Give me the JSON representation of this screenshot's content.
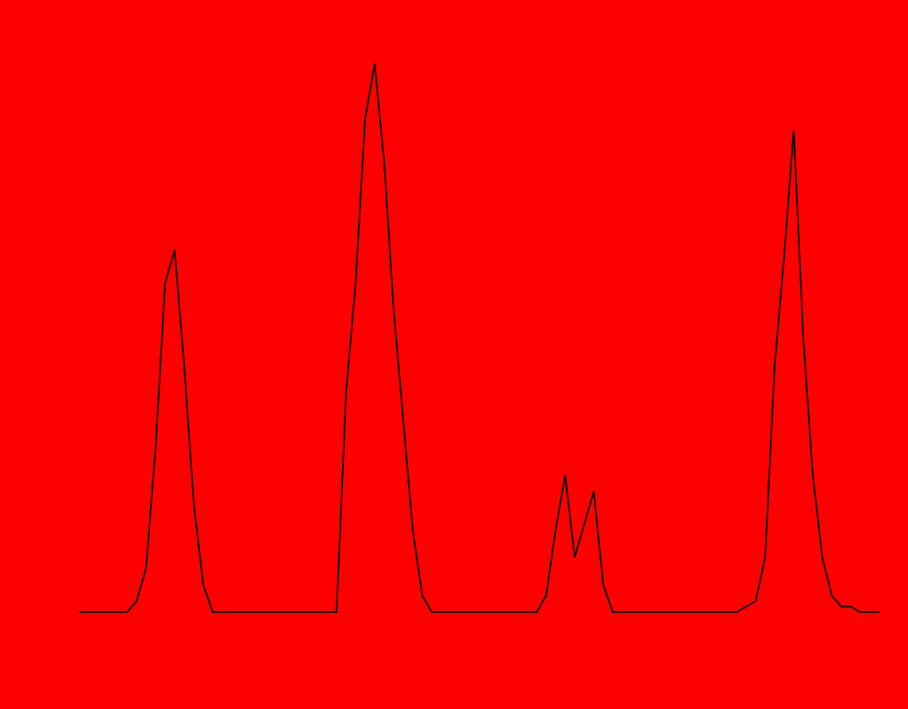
{
  "chart_data": {
    "type": "line",
    "background": "#ff0000",
    "color": "#000000",
    "ylim": [
      0,
      100
    ],
    "values": [
      0,
      0,
      0,
      0,
      0,
      0,
      2,
      8,
      30,
      60,
      66,
      45,
      20,
      5,
      0,
      0,
      0,
      0,
      0,
      0,
      0,
      0,
      0,
      0,
      0,
      0,
      0,
      0,
      40,
      60,
      90,
      100,
      82,
      55,
      35,
      15,
      3,
      0,
      0,
      0,
      0,
      0,
      0,
      0,
      0,
      0,
      0,
      0,
      0,
      3,
      15,
      25,
      10,
      16,
      22,
      5,
      0,
      0,
      0,
      0,
      0,
      0,
      0,
      0,
      0,
      0,
      0,
      0,
      0,
      0,
      1,
      2,
      10,
      45,
      65,
      88,
      50,
      25,
      10,
      3,
      1,
      1,
      0,
      0,
      0
    ]
  }
}
